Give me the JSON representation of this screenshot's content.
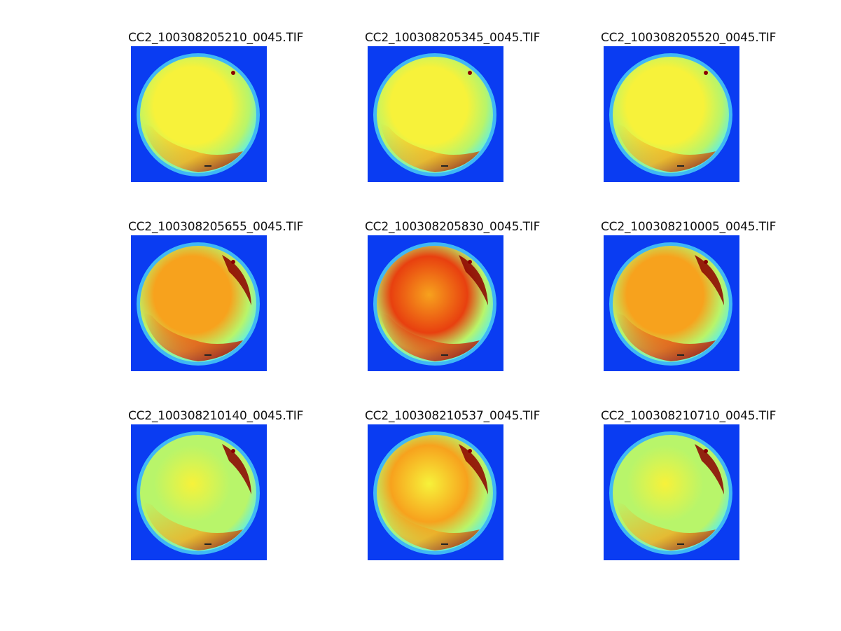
{
  "panels": [
    {
      "title": "CC2_100308205210_0045.TIF",
      "palette": "yellow"
    },
    {
      "title": "CC2_100308205345_0045.TIF",
      "palette": "yellow"
    },
    {
      "title": "CC2_100308205520_0045.TIF",
      "palette": "yellow"
    },
    {
      "title": "CC2_100308205655_0045.TIF",
      "palette": "orange"
    },
    {
      "title": "CC2_100308205830_0045.TIF",
      "palette": "red"
    },
    {
      "title": "CC2_100308210005_0045.TIF",
      "palette": "orange"
    },
    {
      "title": "CC2_100308210140_0045.TIF",
      "palette": "green"
    },
    {
      "title": "CC2_100308210537_0045.TIF",
      "palette": "yellow-orange"
    },
    {
      "title": "CC2_100308210710_0045.TIF",
      "palette": "green"
    }
  ],
  "colors": {
    "background": "#0a3cf2",
    "rim": "#3fb8f5",
    "cyan": "#62f0e0",
    "green": "#b8f56a",
    "yellow": "#f7f23a",
    "orange": "#f7a21d",
    "red": "#e8400f",
    "dark_red": "#8a0000"
  }
}
